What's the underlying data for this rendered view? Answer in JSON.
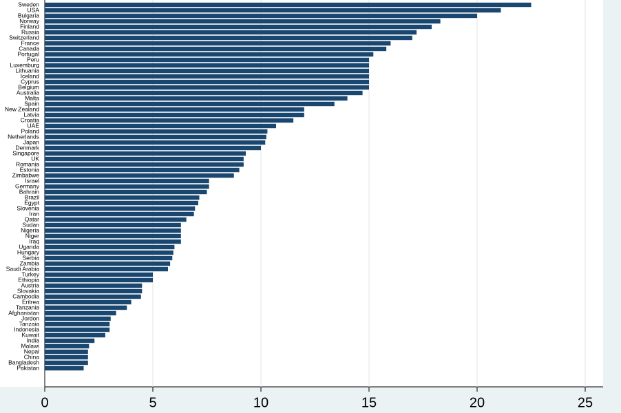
{
  "chart_data": {
    "type": "bar",
    "color": "#1a476f",
    "grid": true,
    "categories": [
      "Sweden",
      "USA",
      "Bulgaria",
      "Norway",
      "Finland",
      "Russia",
      "Switzerland",
      "France",
      "Canada",
      "Portugal",
      "Peru",
      "Luxemburg",
      "Lithuania",
      "Iceland",
      "Cyprus",
      "Belgium",
      "Australia",
      "Malta",
      "Spain",
      "New Zealand",
      "Latvia",
      "Croatia",
      "UAE",
      "Poland",
      "Netherlands",
      "Japan",
      "Denmark",
      "Singapore",
      "UK",
      "Romania",
      "Estonia",
      "Zimbabwe",
      "Israel",
      "Germany",
      "Bahrain",
      "Brazil",
      "Egypt",
      "Slovenia",
      "Iran",
      "Qatar",
      "Sudan",
      "Nigeria",
      "Niger",
      "Iraq",
      "Uganda",
      "Hungary",
      "Serbia",
      "Zambia",
      "Saudi Arabia",
      "Turkey",
      "Ethiopia",
      "Austria",
      "Slovakia",
      "Cambodia",
      "Eritrea",
      "Tanzania",
      "Afghanistan",
      "Jordon",
      "Tanzaia",
      "Indonesia",
      "Kuwait",
      "India",
      "Malawi",
      "Nepal",
      "China",
      "Bangladesh",
      "Pakistan"
    ],
    "values": [
      22.5,
      21.1,
      20.0,
      18.3,
      17.9,
      17.2,
      17.0,
      16.0,
      15.8,
      15.2,
      15.0,
      15.0,
      15.0,
      15.0,
      15.0,
      15.0,
      14.7,
      14.0,
      13.4,
      12.0,
      12.0,
      11.5,
      10.7,
      10.3,
      10.25,
      10.2,
      10.0,
      9.3,
      9.2,
      9.2,
      9.0,
      8.75,
      7.6,
      7.6,
      7.5,
      7.15,
      7.1,
      6.95,
      6.9,
      6.55,
      6.3,
      6.3,
      6.3,
      6.3,
      6.0,
      5.95,
      5.9,
      5.8,
      5.7,
      5.0,
      5.0,
      4.5,
      4.5,
      4.45,
      4.0,
      3.8,
      3.3,
      3.05,
      3.0,
      3.0,
      2.8,
      2.3,
      2.05,
      2.0,
      2.0,
      2.0,
      1.8
    ],
    "xlim": [
      0,
      25
    ],
    "xticks": [
      0,
      5,
      10,
      15,
      20,
      25
    ]
  }
}
